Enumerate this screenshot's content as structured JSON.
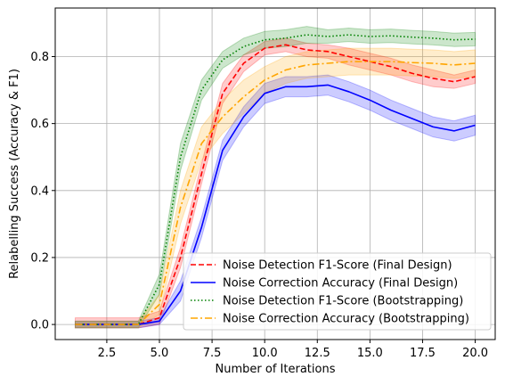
{
  "chart_data": {
    "type": "line",
    "title": "",
    "xlabel": "Number of Iterations",
    "ylabel": "Relabelling Success (Accuracy & F1)",
    "xlim": [
      0.05,
      20.95
    ],
    "ylim": [
      -0.045,
      0.945
    ],
    "x_ticks": [
      2.5,
      5.0,
      7.5,
      10.0,
      12.5,
      15.0,
      17.5,
      20.0
    ],
    "x_tick_labels": [
      "2.5",
      "5.0",
      "7.5",
      "10.0",
      "12.5",
      "15.0",
      "17.5",
      "20.0"
    ],
    "y_ticks": [
      0.0,
      0.2,
      0.4,
      0.6,
      0.8
    ],
    "y_tick_labels": [
      "0.0",
      "0.2",
      "0.4",
      "0.6",
      "0.8"
    ],
    "grid": true,
    "legend_position": "lower-right",
    "x": [
      1,
      2,
      3,
      4,
      5,
      6,
      7,
      8,
      9,
      10,
      11,
      12,
      13,
      14,
      15,
      16,
      17,
      18,
      19,
      20
    ],
    "series": [
      {
        "name": "Noise Detection F1-Score (Final Design)",
        "color": "#ff0000",
        "linestyle": "dashed",
        "values": [
          0.0,
          0.0,
          0.0,
          0.0,
          0.02,
          0.2,
          0.45,
          0.69,
          0.78,
          0.825,
          0.835,
          0.82,
          0.815,
          0.8,
          0.785,
          0.77,
          0.75,
          0.735,
          0.725,
          0.74
        ],
        "band": [
          0.02,
          0.02,
          0.02,
          0.02,
          0.02,
          0.03,
          0.03,
          0.03,
          0.025,
          0.02,
          0.02,
          0.02,
          0.02,
          0.025,
          0.025,
          0.025,
          0.025,
          0.025,
          0.02,
          0.02
        ]
      },
      {
        "name": "Noise Correction Accuracy (Final Design)",
        "color": "#0000ff",
        "linestyle": "solid",
        "values": [
          0.0,
          0.0,
          0.0,
          0.0,
          0.01,
          0.1,
          0.29,
          0.52,
          0.62,
          0.69,
          0.71,
          0.71,
          0.715,
          0.695,
          0.67,
          0.64,
          0.615,
          0.59,
          0.578,
          0.595
        ],
        "band": [
          0.01,
          0.01,
          0.01,
          0.01,
          0.01,
          0.03,
          0.03,
          0.03,
          0.03,
          0.03,
          0.03,
          0.03,
          0.03,
          0.03,
          0.03,
          0.03,
          0.03,
          0.03,
          0.03,
          0.03
        ]
      },
      {
        "name": "Noise Detection F1-Score (Bootstrapping)",
        "color": "#008000",
        "linestyle": "dotted",
        "values": [
          0.0,
          0.0,
          0.0,
          0.0,
          0.12,
          0.5,
          0.7,
          0.79,
          0.83,
          0.85,
          0.855,
          0.865,
          0.86,
          0.865,
          0.86,
          0.862,
          0.858,
          0.855,
          0.85,
          0.852
        ],
        "band": [
          0.01,
          0.01,
          0.01,
          0.01,
          0.03,
          0.04,
          0.03,
          0.025,
          0.025,
          0.025,
          0.025,
          0.025,
          0.02,
          0.02,
          0.02,
          0.02,
          0.02,
          0.02,
          0.02,
          0.02
        ]
      },
      {
        "name": "Noise Correction Accuracy (Bootstrapping)",
        "color": "#ffa500",
        "linestyle": "dashdot",
        "values": [
          0.0,
          0.0,
          0.0,
          0.0,
          0.06,
          0.35,
          0.54,
          0.62,
          0.68,
          0.73,
          0.76,
          0.775,
          0.78,
          0.785,
          0.785,
          0.785,
          0.782,
          0.78,
          0.775,
          0.78
        ],
        "band": [
          0.01,
          0.01,
          0.01,
          0.01,
          0.03,
          0.05,
          0.05,
          0.05,
          0.05,
          0.04,
          0.04,
          0.04,
          0.04,
          0.04,
          0.04,
          0.04,
          0.04,
          0.04,
          0.04,
          0.04
        ]
      }
    ]
  }
}
